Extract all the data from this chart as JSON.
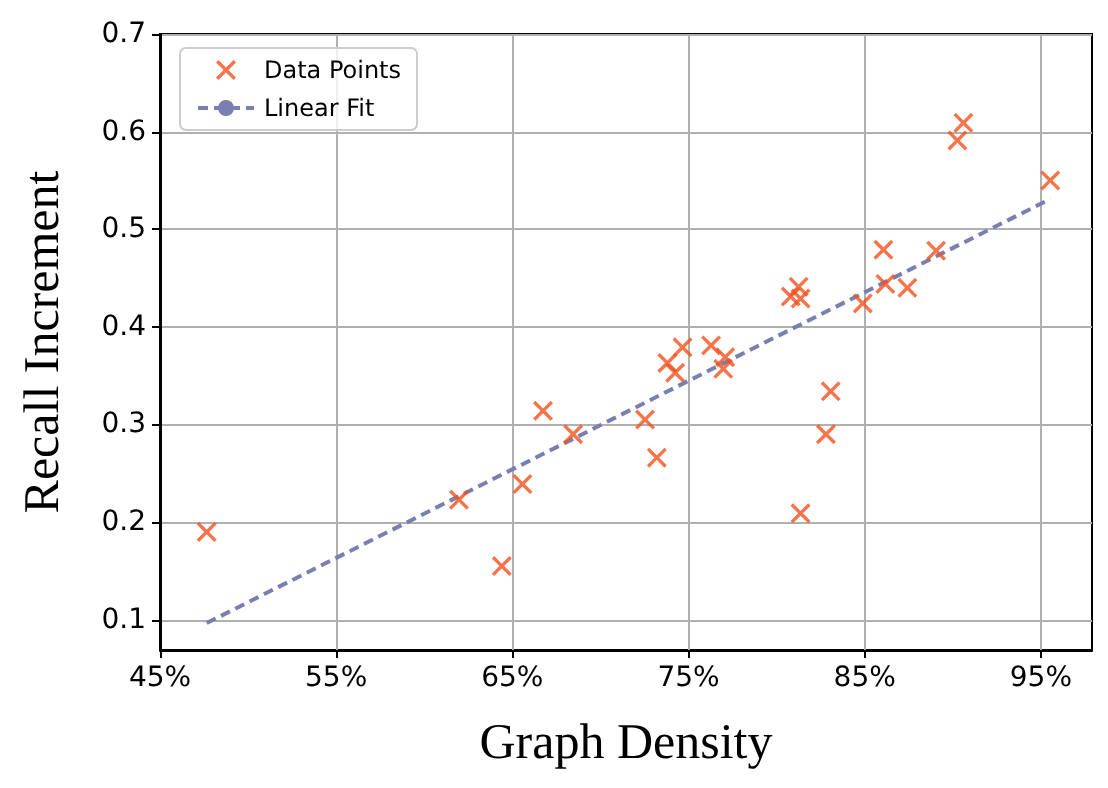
{
  "chart_data": {
    "type": "scatter",
    "xlabel": "Graph Density",
    "ylabel": "Recall Increment",
    "xlim": [
      45,
      97.9
    ],
    "ylim": [
      0.069,
      0.7
    ],
    "xticks": [
      {
        "value": 45,
        "label": "45%"
      },
      {
        "value": 55,
        "label": "55%"
      },
      {
        "value": 65,
        "label": "65%"
      },
      {
        "value": 75,
        "label": "75%"
      },
      {
        "value": 85,
        "label": "85%"
      },
      {
        "value": 95,
        "label": "95%"
      }
    ],
    "yticks": [
      0.1,
      0.2,
      0.3,
      0.4,
      0.5,
      0.6,
      0.7
    ],
    "grid": true,
    "legend": "top left",
    "marker": "cross",
    "series": [
      {
        "name": "Data Points",
        "color": "#f4511e",
        "x": [
          47.65,
          61.97,
          64.4,
          65.57,
          66.74,
          68.45,
          72.53,
          73.2,
          73.8,
          74.24,
          74.66,
          76.28,
          77.08,
          76.97,
          80.8,
          81.25,
          81.36,
          81.36,
          82.8,
          83.07,
          84.89,
          86.06,
          86.17,
          87.42,
          89.05,
          90.26,
          90.6,
          95.53
        ],
        "values": [
          0.19,
          0.223,
          0.155,
          0.239,
          0.314,
          0.29,
          0.305,
          0.266,
          0.363,
          0.353,
          0.379,
          0.381,
          0.369,
          0.357,
          0.431,
          0.441,
          0.429,
          0.209,
          0.29,
          0.334,
          0.424,
          0.479,
          0.444,
          0.44,
          0.478,
          0.591,
          0.609,
          0.55
        ]
      },
      {
        "name": "Linear Fit",
        "type": "line",
        "color": "#7a7fb0",
        "line_style": "dashed",
        "marker": "none",
        "x": [
          47.65,
          95.53
        ],
        "values": [
          0.0966,
          0.531
        ]
      }
    ]
  }
}
